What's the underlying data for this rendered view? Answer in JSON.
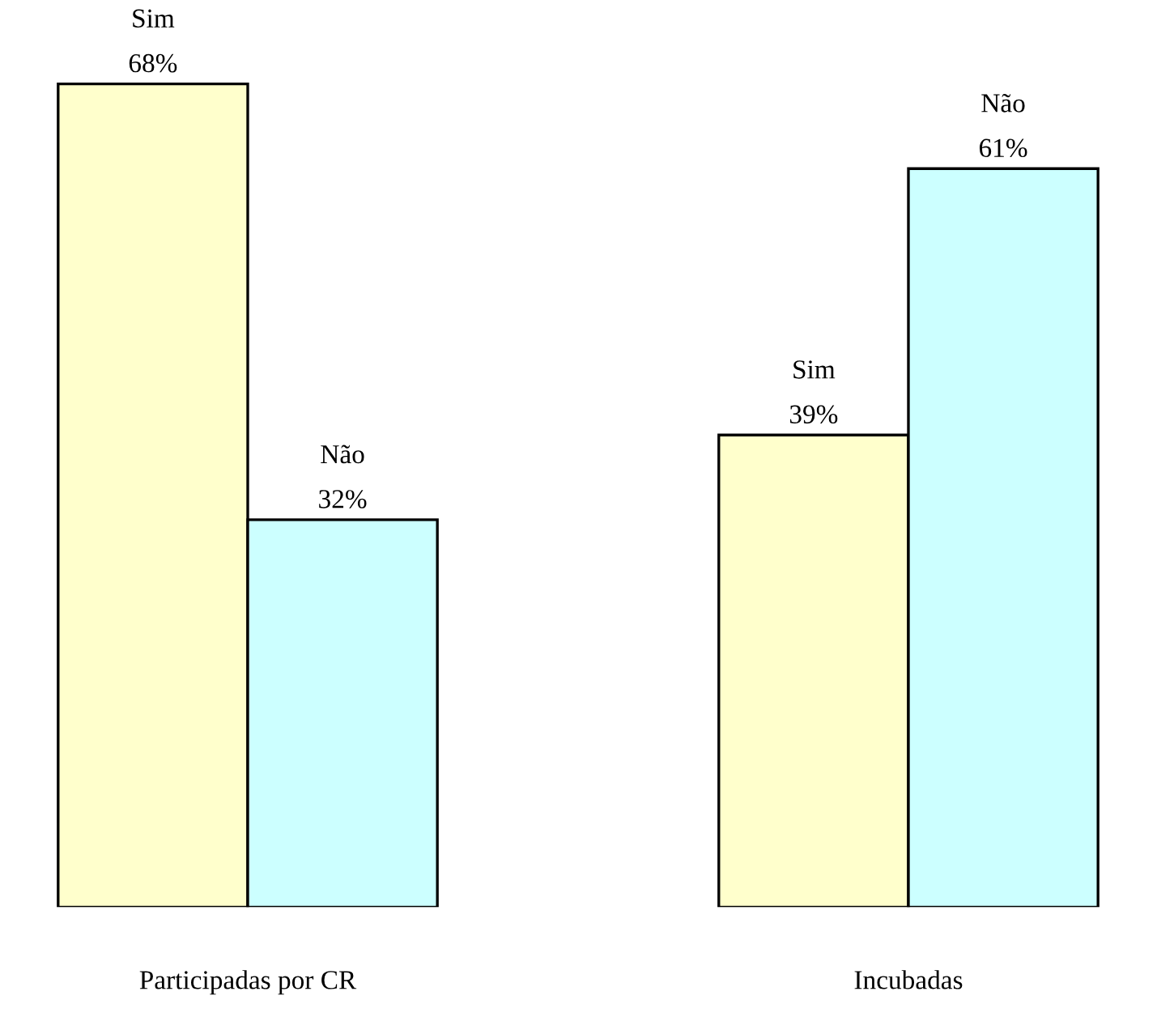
{
  "chart_data": {
    "type": "bar",
    "categories": [
      "Participadas por CR",
      "Incubadas"
    ],
    "series": [
      {
        "name": "Sim",
        "color": "#ffffcc",
        "values": [
          68,
          39
        ],
        "value_labels": [
          "68%",
          "39%"
        ]
      },
      {
        "name": "Não",
        "color": "#ccffff",
        "values": [
          32,
          61
        ],
        "value_labels": [
          "32%",
          "61%"
        ]
      }
    ],
    "legend": false,
    "grid": false
  }
}
